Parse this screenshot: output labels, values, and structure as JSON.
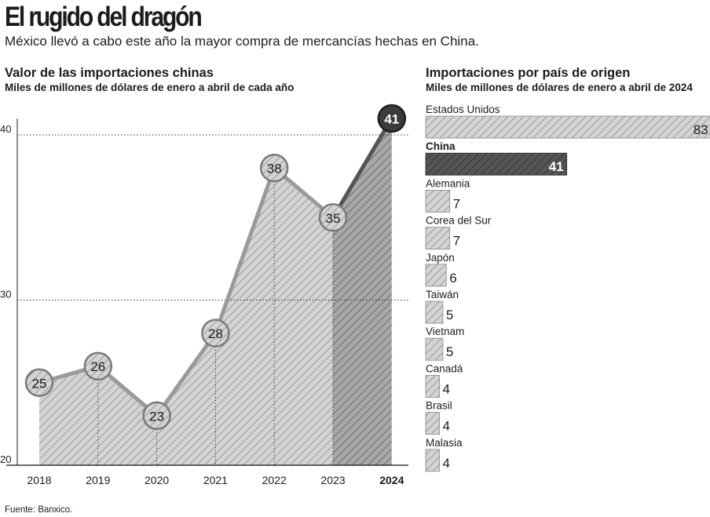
{
  "header": {
    "title": "El rugido del dragón",
    "subtitle": "México llevó a cabo este año la mayor compra de mercancías hechas en China."
  },
  "colors": {
    "hatch_light": "#bdbdbd",
    "hatch_dark": "#8f8f8f",
    "line_light": "#9a9a9a",
    "line_dark": "#555555",
    "china_bar": "#4a4a4a",
    "ink": "#1c1c1c"
  },
  "chart_data": [
    {
      "type": "line",
      "title": "Valor de las importaciones chinas",
      "subtitle": "Miles de millones de dólares de enero a abril de cada año",
      "x": [
        "2018",
        "2019",
        "2020",
        "2021",
        "2022",
        "2023",
        "2024"
      ],
      "values": [
        25,
        26,
        23,
        28,
        38,
        35,
        41
      ],
      "data_labels": [
        "25",
        "26",
        "23",
        "28",
        "38",
        "35",
        "41"
      ],
      "ylim": [
        20,
        41
      ],
      "yticks": [
        20,
        30,
        40
      ],
      "ytick_labels": [
        "20",
        "30",
        "40"
      ],
      "highlight_category": "2024",
      "grid": "dotted"
    },
    {
      "type": "bar",
      "orientation": "horizontal",
      "title": "Importaciones por país de origen",
      "subtitle": "Miles de millones de dólares de enero a abril de 2024",
      "categories": [
        "Estados Unidos",
        "China",
        "Alemania",
        "Corea del Sur",
        "Japón",
        "Taiwán",
        "Vietnam",
        "Canadá",
        "Brasil",
        "Malasia"
      ],
      "values": [
        83,
        41,
        7,
        7,
        6,
        5,
        5,
        4,
        4,
        4
      ],
      "data_labels": [
        "83",
        "41",
        "7",
        "7",
        "6",
        "5",
        "5",
        "4",
        "4",
        "4"
      ],
      "highlight_category": "China",
      "xlim": [
        0,
        83
      ]
    }
  ],
  "footer": {
    "source": "Fuente: Banxico."
  }
}
